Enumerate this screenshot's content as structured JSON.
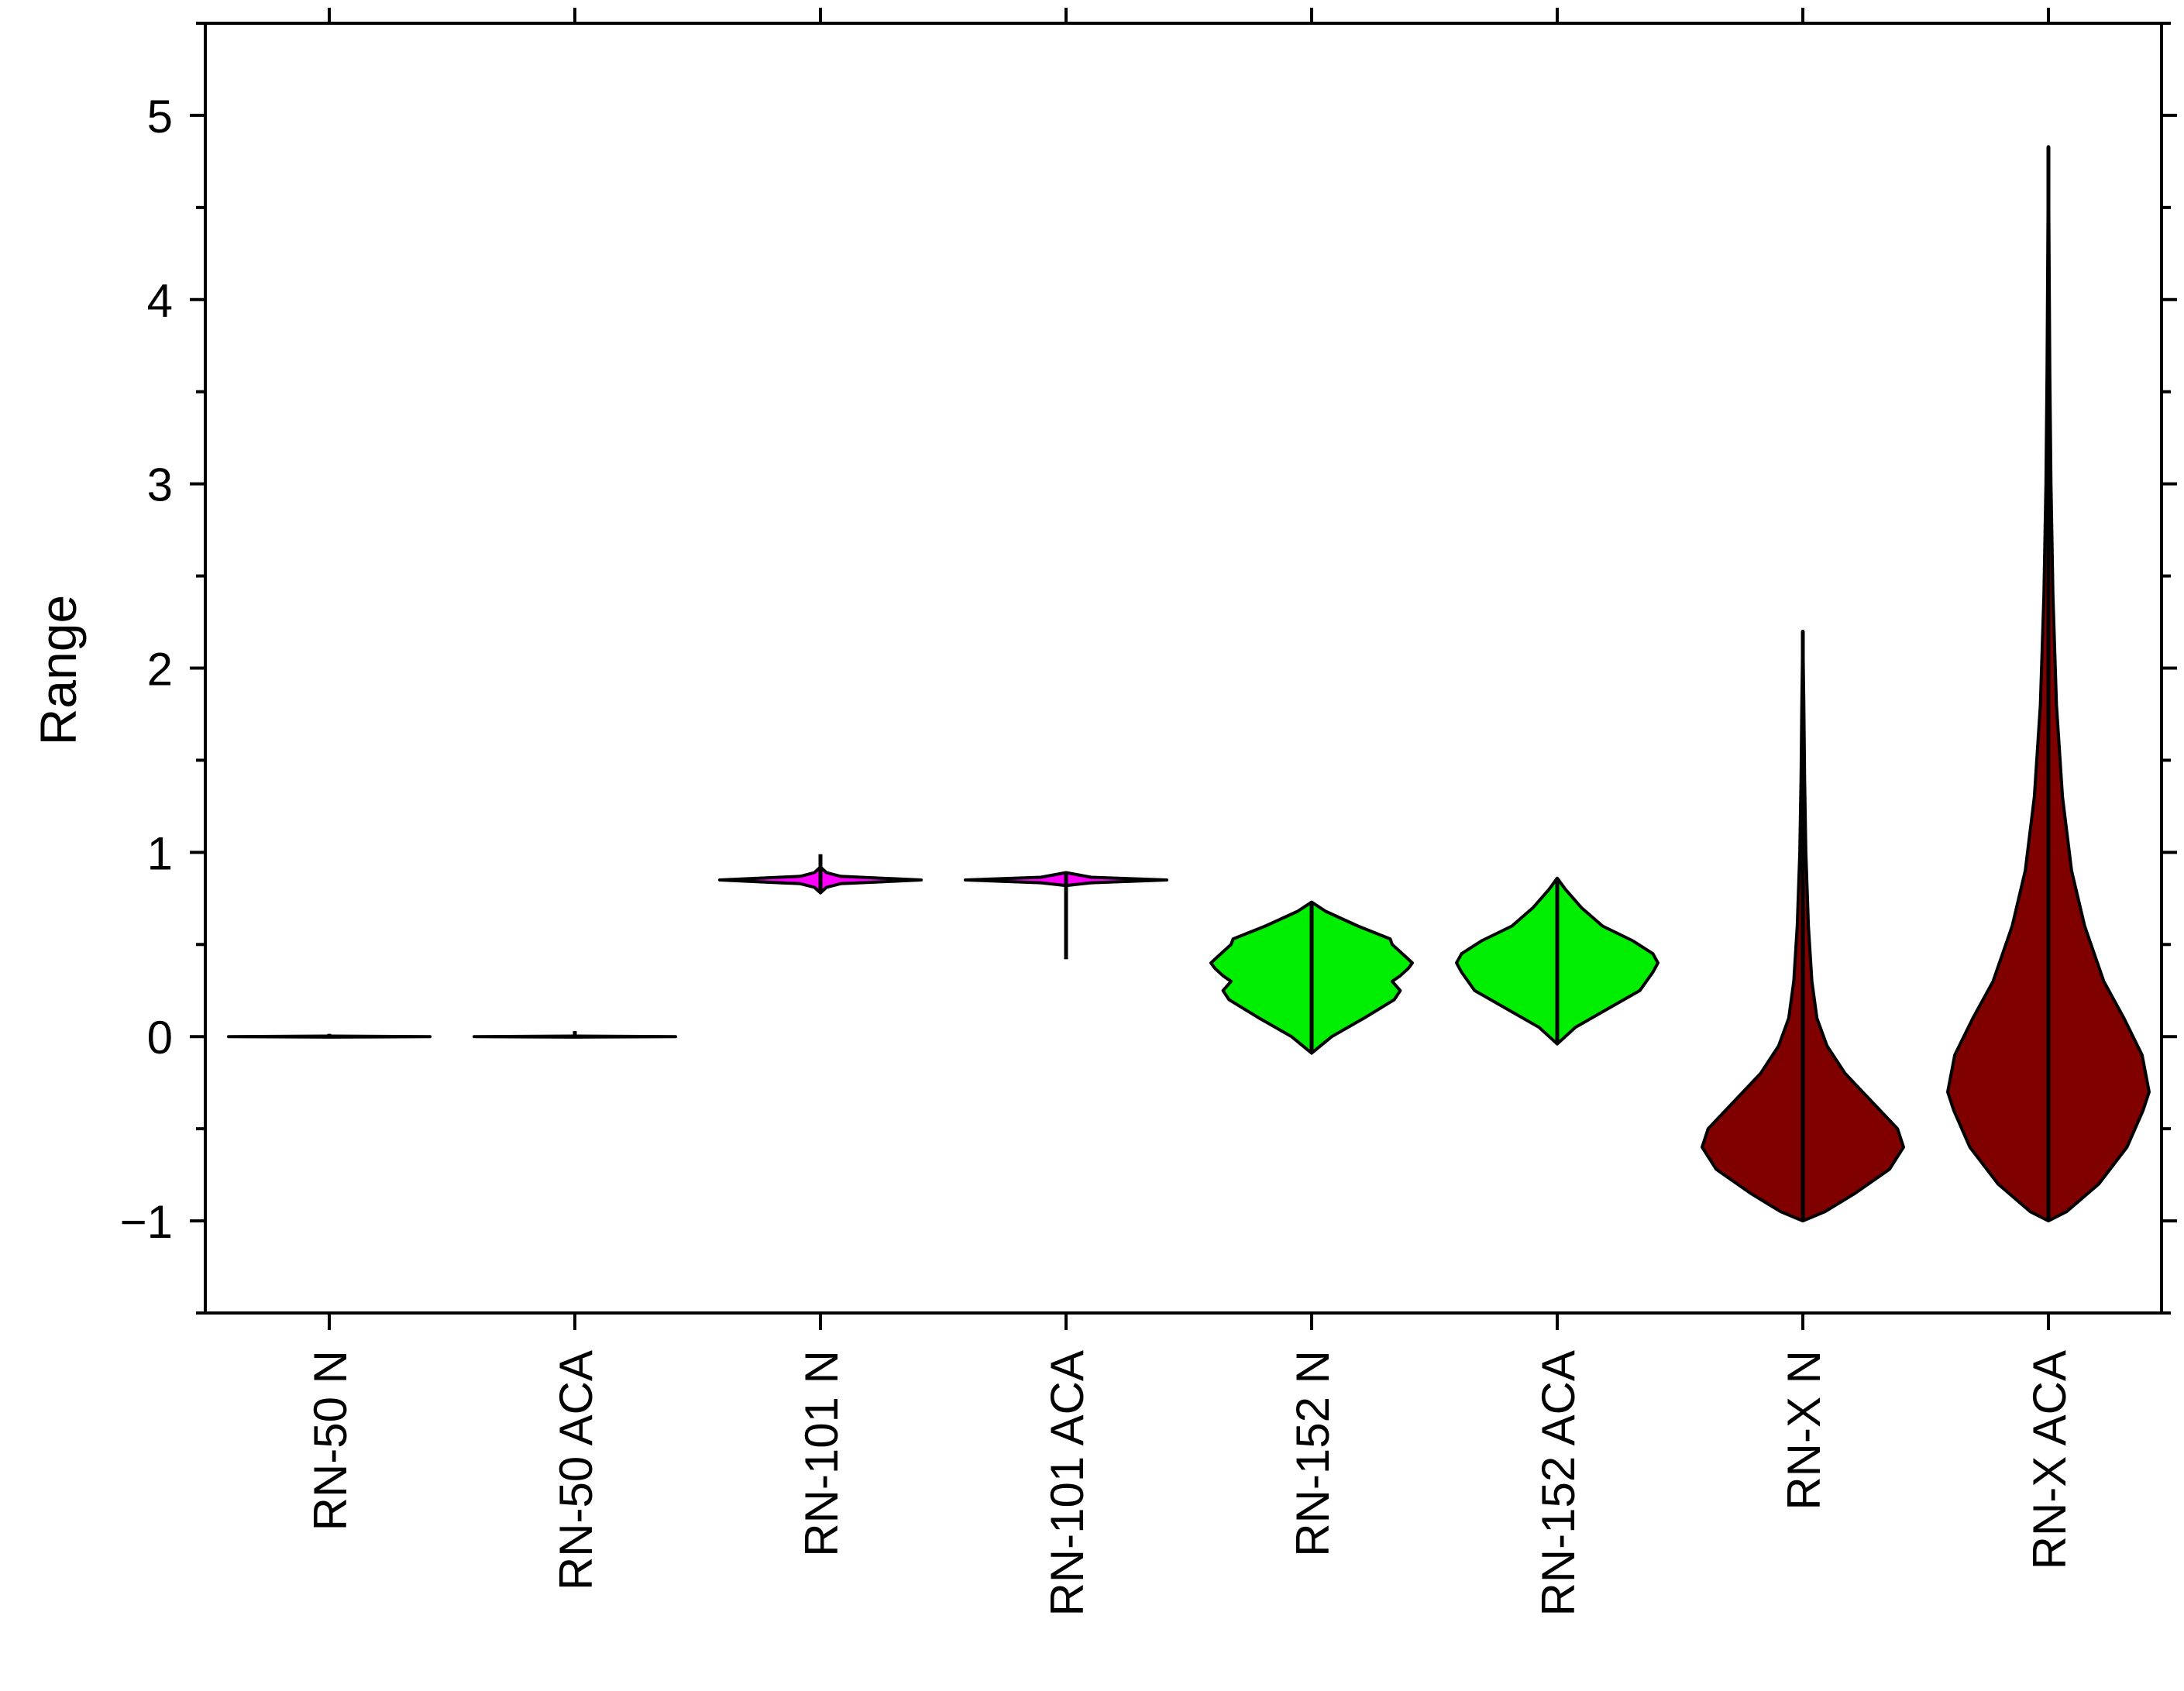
{
  "chart_data": {
    "type": "violin",
    "title": "",
    "xlabel": "",
    "ylabel": "Range",
    "ylim": [
      -1.5,
      5.5
    ],
    "yticks": [
      -1,
      0,
      1,
      2,
      3,
      4,
      5
    ],
    "ytick_labels": [
      "−1",
      "0",
      "1",
      "2",
      "3",
      "4",
      "5"
    ],
    "grid": false,
    "legend": "none",
    "categories": [
      "RN-50 N",
      "RN-50 ACA",
      "RN-101 N",
      "RN-101 ACA",
      "RN-152 N",
      "RN-152 ACA",
      "RN-X N",
      "RN-X ACA"
    ],
    "violins": [
      {
        "label": "RN-50 N",
        "color": "#00dd00",
        "profile": [
          [
            -0.003,
            0.0
          ],
          [
            0.0,
            1.0
          ],
          [
            0.003,
            0.0
          ]
        ],
        "whisker": [
          -0.003,
          0.015
        ]
      },
      {
        "label": "RN-50 ACA",
        "color": "#00dd00",
        "profile": [
          [
            -0.003,
            0.0
          ],
          [
            0.0,
            1.0
          ],
          [
            0.003,
            0.0
          ]
        ],
        "whisker": [
          -0.003,
          0.03
        ]
      },
      {
        "label": "RN-101 N",
        "color": "#ff00ff",
        "profile": [
          [
            0.78,
            0.0
          ],
          [
            0.81,
            0.06
          ],
          [
            0.83,
            0.2
          ],
          [
            0.85,
            1.0
          ],
          [
            0.87,
            0.2
          ],
          [
            0.89,
            0.06
          ],
          [
            0.92,
            0.0
          ]
        ],
        "whisker": [
          0.78,
          0.99
        ]
      },
      {
        "label": "RN-101 ACA",
        "color": "#ff00ff",
        "profile": [
          [
            0.82,
            0.0
          ],
          [
            0.835,
            0.25
          ],
          [
            0.85,
            1.0
          ],
          [
            0.865,
            0.25
          ],
          [
            0.89,
            0.0
          ]
        ],
        "whisker": [
          0.42,
          0.89
        ]
      },
      {
        "label": "RN-152 N",
        "color": "#00ee00",
        "profile": [
          [
            -0.09,
            0.0
          ],
          [
            0.0,
            0.2
          ],
          [
            0.1,
            0.52
          ],
          [
            0.2,
            0.82
          ],
          [
            0.25,
            0.88
          ],
          [
            0.3,
            0.8
          ],
          [
            0.33,
            0.88
          ],
          [
            0.37,
            0.96
          ],
          [
            0.4,
            1.0
          ],
          [
            0.43,
            0.94
          ],
          [
            0.47,
            0.86
          ],
          [
            0.5,
            0.8
          ],
          [
            0.53,
            0.78
          ],
          [
            0.6,
            0.46
          ],
          [
            0.68,
            0.14
          ],
          [
            0.73,
            0.0
          ]
        ],
        "whisker": [
          -0.09,
          0.73
        ]
      },
      {
        "label": "RN-152 ACA",
        "color": "#00ee00",
        "profile": [
          [
            -0.04,
            0.0
          ],
          [
            0.05,
            0.18
          ],
          [
            0.15,
            0.5
          ],
          [
            0.25,
            0.82
          ],
          [
            0.35,
            0.95
          ],
          [
            0.4,
            1.0
          ],
          [
            0.45,
            0.95
          ],
          [
            0.52,
            0.75
          ],
          [
            0.6,
            0.45
          ],
          [
            0.7,
            0.24
          ],
          [
            0.8,
            0.08
          ],
          [
            0.86,
            0.0
          ]
        ],
        "whisker": [
          -0.04,
          0.86
        ]
      },
      {
        "label": "RN-X N",
        "color": "#800000",
        "profile": [
          [
            -1.0,
            0.0
          ],
          [
            -0.95,
            0.22
          ],
          [
            -0.85,
            0.52
          ],
          [
            -0.72,
            0.86
          ],
          [
            -0.6,
            1.0
          ],
          [
            -0.5,
            0.94
          ],
          [
            -0.35,
            0.68
          ],
          [
            -0.2,
            0.42
          ],
          [
            -0.05,
            0.24
          ],
          [
            0.1,
            0.14
          ],
          [
            0.3,
            0.09
          ],
          [
            0.6,
            0.055
          ],
          [
            1.0,
            0.03
          ],
          [
            1.4,
            0.018
          ],
          [
            1.8,
            0.01
          ],
          [
            2.2,
            0.0
          ]
        ],
        "whisker": [
          -1.0,
          2.2
        ]
      },
      {
        "label": "RN-X ACA",
        "color": "#800000",
        "profile": [
          [
            -1.0,
            0.0
          ],
          [
            -0.95,
            0.18
          ],
          [
            -0.8,
            0.5
          ],
          [
            -0.6,
            0.78
          ],
          [
            -0.4,
            0.94
          ],
          [
            -0.3,
            1.0
          ],
          [
            -0.1,
            0.93
          ],
          [
            0.1,
            0.75
          ],
          [
            0.3,
            0.55
          ],
          [
            0.6,
            0.36
          ],
          [
            0.9,
            0.23
          ],
          [
            1.3,
            0.14
          ],
          [
            1.8,
            0.08
          ],
          [
            2.4,
            0.045
          ],
          [
            3.0,
            0.025
          ],
          [
            3.6,
            0.014
          ],
          [
            4.2,
            0.007
          ],
          [
            4.83,
            0.0
          ]
        ],
        "whisker": [
          -1.0,
          4.83
        ]
      }
    ]
  }
}
